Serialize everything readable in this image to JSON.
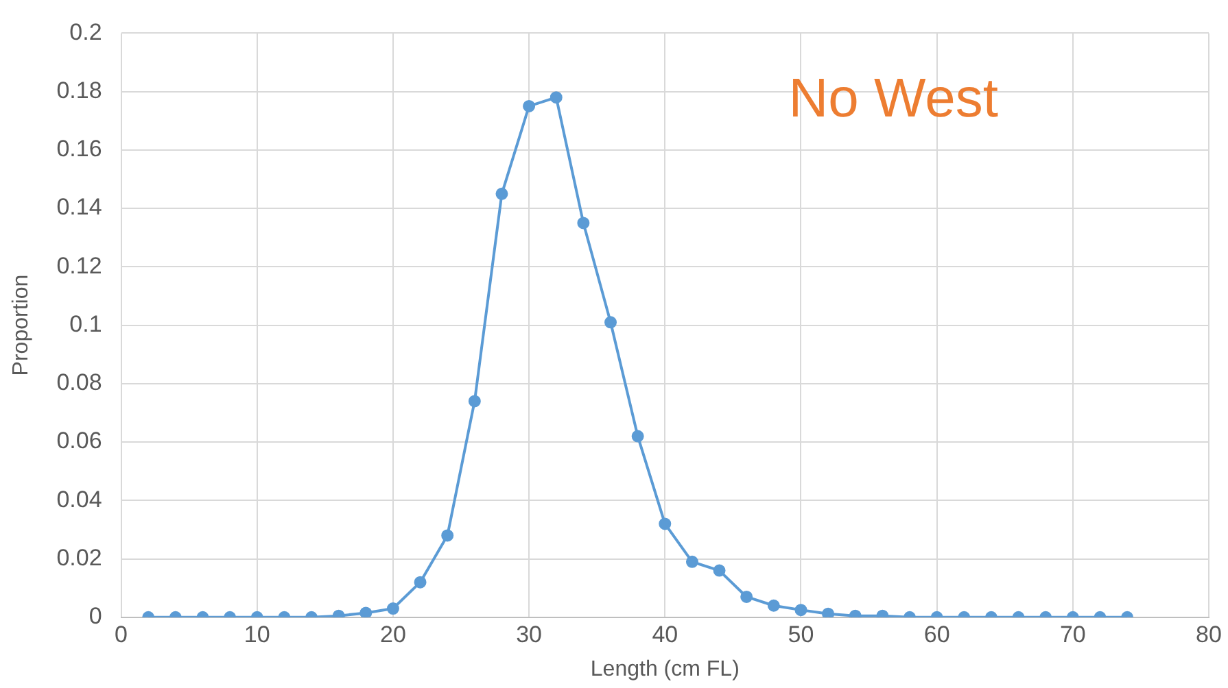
{
  "chart_data": {
    "type": "line",
    "xlabel": "Length (cm FL)",
    "ylabel": "Proportion",
    "annotations": [
      "No West"
    ],
    "x": [
      2,
      4,
      6,
      8,
      10,
      12,
      14,
      16,
      18,
      20,
      22,
      24,
      26,
      28,
      30,
      32,
      34,
      36,
      38,
      40,
      42,
      44,
      46,
      48,
      50,
      52,
      54,
      56,
      58,
      60,
      62,
      64,
      66,
      68,
      70,
      72,
      74
    ],
    "series": [
      {
        "color": "#5b9bd5",
        "values": [
          0,
          0,
          0,
          0,
          0,
          0,
          0,
          0.0005,
          0.0015,
          0.003,
          0.012,
          0.028,
          0.074,
          0.145,
          0.175,
          0.178,
          0.135,
          0.101,
          0.062,
          0.032,
          0.019,
          0.016,
          0.007,
          0.004,
          0.0025,
          0.0012,
          0.0005,
          0.0005,
          0,
          0,
          0,
          0,
          0,
          0,
          0,
          0,
          0
        ]
      }
    ],
    "xlim": [
      0,
      80
    ],
    "xticks": [
      0,
      10,
      20,
      30,
      40,
      50,
      60,
      70,
      80
    ],
    "ylim": [
      0,
      0.2
    ],
    "yticks": [
      0,
      0.02,
      0.04,
      0.06,
      0.08,
      0.1,
      0.12,
      0.14,
      0.16,
      0.18,
      0.2
    ],
    "grid": true,
    "legend": false,
    "marker": "circle",
    "line_style": "solid"
  }
}
